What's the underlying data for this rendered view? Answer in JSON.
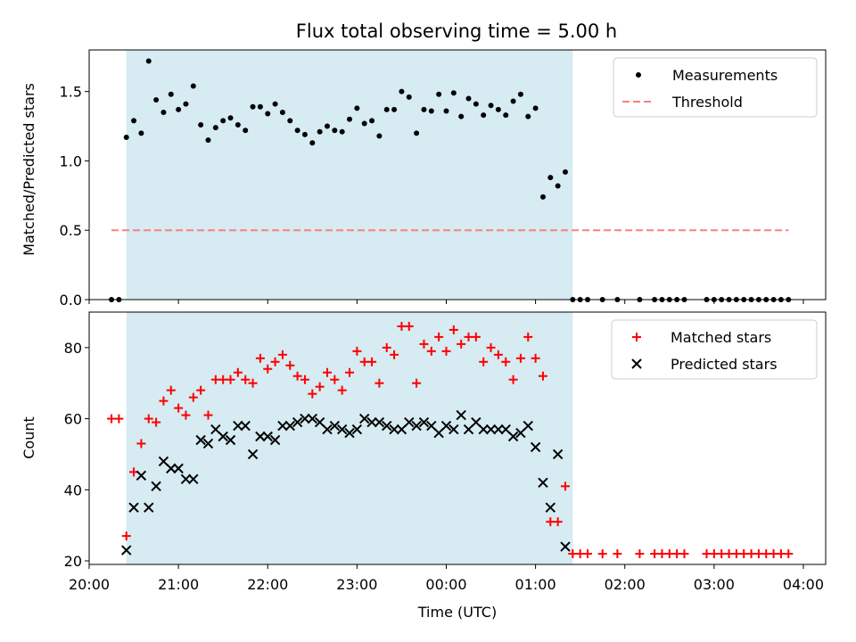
{
  "title": "Flux total observing time = 5.00 h",
  "colors": {
    "shade": "#add8e6",
    "measurements": "#000000",
    "threshold": "#ff7f7f",
    "matched": "#ff0000",
    "predicted": "#000000"
  },
  "chart_data": [
    {
      "type": "scatter",
      "ylabel": "Matched/Predicted stars",
      "xlabel": "",
      "xlim": [
        "20:00",
        "04:15"
      ],
      "ylim": [
        0,
        1.8
      ],
      "yticks": [
        "0.0",
        "0.5",
        "1.0",
        "1.5"
      ],
      "yticks_values": [
        0,
        0.5,
        1.0,
        1.5
      ],
      "xticks_values": [
        "20:00",
        "21:00",
        "22:00",
        "23:00",
        "00:00",
        "01:00",
        "02:00",
        "03:00",
        "04:00"
      ],
      "shaded_span": [
        "20:25",
        "01:25"
      ],
      "legend_placement": "upper right",
      "series": [
        {
          "name": "Measurements",
          "marker": "dot",
          "points": [
            [
              "20:15",
              0.0
            ],
            [
              "20:20",
              0.0
            ],
            [
              "20:25",
              1.17
            ],
            [
              "20:30",
              1.29
            ],
            [
              "20:35",
              1.2
            ],
            [
              "20:40",
              1.72
            ],
            [
              "20:45",
              1.44
            ],
            [
              "20:50",
              1.35
            ],
            [
              "20:55",
              1.48
            ],
            [
              "21:00",
              1.37
            ],
            [
              "21:05",
              1.41
            ],
            [
              "21:10",
              1.54
            ],
            [
              "21:15",
              1.26
            ],
            [
              "21:20",
              1.15
            ],
            [
              "21:25",
              1.24
            ],
            [
              "21:30",
              1.29
            ],
            [
              "21:35",
              1.31
            ],
            [
              "21:40",
              1.26
            ],
            [
              "21:45",
              1.22
            ],
            [
              "21:50",
              1.39
            ],
            [
              "21:55",
              1.39
            ],
            [
              "22:00",
              1.34
            ],
            [
              "22:05",
              1.41
            ],
            [
              "22:10",
              1.35
            ],
            [
              "22:15",
              1.29
            ],
            [
              "22:20",
              1.22
            ],
            [
              "22:25",
              1.19
            ],
            [
              "22:30",
              1.13
            ],
            [
              "22:35",
              1.21
            ],
            [
              "22:40",
              1.25
            ],
            [
              "22:45",
              1.22
            ],
            [
              "22:50",
              1.21
            ],
            [
              "22:55",
              1.3
            ],
            [
              "23:00",
              1.38
            ],
            [
              "23:05",
              1.27
            ],
            [
              "23:10",
              1.29
            ],
            [
              "23:15",
              1.18
            ],
            [
              "23:20",
              1.37
            ],
            [
              "23:25",
              1.37
            ],
            [
              "23:30",
              1.5
            ],
            [
              "23:35",
              1.46
            ],
            [
              "23:40",
              1.2
            ],
            [
              "23:45",
              1.37
            ],
            [
              "23:50",
              1.36
            ],
            [
              "23:55",
              1.48
            ],
            [
              "00:00",
              1.36
            ],
            [
              "00:05",
              1.49
            ],
            [
              "00:10",
              1.32
            ],
            [
              "00:15",
              1.45
            ],
            [
              "00:20",
              1.41
            ],
            [
              "00:25",
              1.33
            ],
            [
              "00:30",
              1.4
            ],
            [
              "00:35",
              1.37
            ],
            [
              "00:40",
              1.33
            ],
            [
              "00:45",
              1.43
            ],
            [
              "00:50",
              1.48
            ],
            [
              "00:55",
              1.32
            ],
            [
              "01:00",
              1.38
            ],
            [
              "01:05",
              0.74
            ],
            [
              "01:10",
              0.88
            ],
            [
              "01:15",
              0.82
            ],
            [
              "01:20",
              0.92
            ],
            [
              "01:25",
              0.0
            ],
            [
              "01:30",
              0.0
            ],
            [
              "01:35",
              0.0
            ],
            [
              "01:45",
              0.0
            ],
            [
              "01:55",
              0.0
            ],
            [
              "02:10",
              0.0
            ],
            [
              "02:20",
              0.0
            ],
            [
              "02:25",
              0.0
            ],
            [
              "02:30",
              0.0
            ],
            [
              "02:35",
              0.0
            ],
            [
              "02:40",
              0.0
            ],
            [
              "02:55",
              0.0
            ],
            [
              "03:00",
              0.0
            ],
            [
              "03:05",
              0.0
            ],
            [
              "03:10",
              0.0
            ],
            [
              "03:15",
              0.0
            ],
            [
              "03:20",
              0.0
            ],
            [
              "03:25",
              0.0
            ],
            [
              "03:30",
              0.0
            ],
            [
              "03:35",
              0.0
            ],
            [
              "03:40",
              0.0
            ],
            [
              "03:45",
              0.0
            ],
            [
              "03:50",
              0.0
            ]
          ]
        },
        {
          "name": "Threshold",
          "style": "dashed-line",
          "points": [
            [
              "20:15",
              0.5
            ],
            [
              "03:50",
              0.5
            ]
          ]
        }
      ]
    },
    {
      "type": "scatter",
      "ylabel": "Count",
      "xlabel": "Time (UTC)",
      "xlim": [
        "20:00",
        "04:15"
      ],
      "ylim": [
        19,
        90
      ],
      "yticks": [
        "20",
        "40",
        "60",
        "80"
      ],
      "yticks_values": [
        20,
        40,
        60,
        80
      ],
      "xticks": [
        "20:00",
        "21:00",
        "22:00",
        "23:00",
        "00:00",
        "01:00",
        "02:00",
        "03:00",
        "04:00"
      ],
      "shaded_span": [
        "20:25",
        "01:25"
      ],
      "legend_placement": "upper right",
      "series": [
        {
          "name": "Matched stars",
          "marker": "plus",
          "points": [
            [
              "20:15",
              60
            ],
            [
              "20:20",
              60
            ],
            [
              "20:25",
              27
            ],
            [
              "20:30",
              45
            ],
            [
              "20:35",
              53
            ],
            [
              "20:40",
              60
            ],
            [
              "20:45",
              59
            ],
            [
              "20:50",
              65
            ],
            [
              "20:55",
              68
            ],
            [
              "21:00",
              63
            ],
            [
              "21:05",
              61
            ],
            [
              "21:10",
              66
            ],
            [
              "21:15",
              68
            ],
            [
              "21:20",
              61
            ],
            [
              "21:25",
              71
            ],
            [
              "21:30",
              71
            ],
            [
              "21:35",
              71
            ],
            [
              "21:40",
              73
            ],
            [
              "21:45",
              71
            ],
            [
              "21:50",
              70
            ],
            [
              "21:55",
              77
            ],
            [
              "22:00",
              74
            ],
            [
              "22:05",
              76
            ],
            [
              "22:10",
              78
            ],
            [
              "22:15",
              75
            ],
            [
              "22:20",
              72
            ],
            [
              "22:25",
              71
            ],
            [
              "22:30",
              67
            ],
            [
              "22:35",
              69
            ],
            [
              "22:40",
              73
            ],
            [
              "22:45",
              71
            ],
            [
              "22:50",
              68
            ],
            [
              "22:55",
              73
            ],
            [
              "23:00",
              79
            ],
            [
              "23:05",
              76
            ],
            [
              "23:10",
              76
            ],
            [
              "23:15",
              70
            ],
            [
              "23:20",
              80
            ],
            [
              "23:25",
              78
            ],
            [
              "23:30",
              86
            ],
            [
              "23:35",
              86
            ],
            [
              "23:40",
              70
            ],
            [
              "23:45",
              81
            ],
            [
              "23:50",
              79
            ],
            [
              "23:55",
              83
            ],
            [
              "00:00",
              79
            ],
            [
              "00:05",
              85
            ],
            [
              "00:10",
              81
            ],
            [
              "00:15",
              83
            ],
            [
              "00:20",
              83
            ],
            [
              "00:25",
              76
            ],
            [
              "00:30",
              80
            ],
            [
              "00:35",
              78
            ],
            [
              "00:40",
              76
            ],
            [
              "00:45",
              71
            ],
            [
              "00:50",
              77
            ],
            [
              "00:55",
              83
            ],
            [
              "01:00",
              77
            ],
            [
              "01:05",
              72
            ],
            [
              "01:10",
              31
            ],
            [
              "01:15",
              31
            ],
            [
              "01:20",
              41
            ],
            [
              "01:25",
              22
            ],
            [
              "01:30",
              22
            ],
            [
              "01:35",
              22
            ],
            [
              "01:45",
              22
            ],
            [
              "01:55",
              22
            ],
            [
              "02:10",
              22
            ],
            [
              "02:20",
              22
            ],
            [
              "02:25",
              22
            ],
            [
              "02:30",
              22
            ],
            [
              "02:35",
              22
            ],
            [
              "02:40",
              22
            ],
            [
              "02:55",
              22
            ],
            [
              "03:00",
              22
            ],
            [
              "03:05",
              22
            ],
            [
              "03:10",
              22
            ],
            [
              "03:15",
              22
            ],
            [
              "03:20",
              22
            ],
            [
              "03:25",
              22
            ],
            [
              "03:30",
              22
            ],
            [
              "03:35",
              22
            ],
            [
              "03:40",
              22
            ],
            [
              "03:45",
              22
            ],
            [
              "03:50",
              22
            ]
          ]
        },
        {
          "name": "Predicted stars",
          "marker": "x",
          "points": [
            [
              "20:25",
              23
            ],
            [
              "20:30",
              35
            ],
            [
              "20:35",
              44
            ],
            [
              "20:40",
              35
            ],
            [
              "20:45",
              41
            ],
            [
              "20:50",
              48
            ],
            [
              "20:55",
              46
            ],
            [
              "21:00",
              46
            ],
            [
              "21:05",
              43
            ],
            [
              "21:10",
              43
            ],
            [
              "21:15",
              54
            ],
            [
              "21:20",
              53
            ],
            [
              "21:25",
              57
            ],
            [
              "21:30",
              55
            ],
            [
              "21:35",
              54
            ],
            [
              "21:40",
              58
            ],
            [
              "21:45",
              58
            ],
            [
              "21:50",
              50
            ],
            [
              "21:55",
              55
            ],
            [
              "22:00",
              55
            ],
            [
              "22:05",
              54
            ],
            [
              "22:10",
              58
            ],
            [
              "22:15",
              58
            ],
            [
              "22:20",
              59
            ],
            [
              "22:25",
              60
            ],
            [
              "22:30",
              60
            ],
            [
              "22:35",
              59
            ],
            [
              "22:40",
              57
            ],
            [
              "22:45",
              58
            ],
            [
              "22:50",
              57
            ],
            [
              "22:55",
              56
            ],
            [
              "23:00",
              57
            ],
            [
              "23:05",
              60
            ],
            [
              "23:10",
              59
            ],
            [
              "23:15",
              59
            ],
            [
              "23:20",
              58
            ],
            [
              "23:25",
              57
            ],
            [
              "23:30",
              57
            ],
            [
              "23:35",
              59
            ],
            [
              "23:40",
              58
            ],
            [
              "23:45",
              59
            ],
            [
              "23:50",
              58
            ],
            [
              "23:55",
              56
            ],
            [
              "00:00",
              58
            ],
            [
              "00:05",
              57
            ],
            [
              "00:10",
              61
            ],
            [
              "00:15",
              57
            ],
            [
              "00:20",
              59
            ],
            [
              "00:25",
              57
            ],
            [
              "00:30",
              57
            ],
            [
              "00:35",
              57
            ],
            [
              "00:40",
              57
            ],
            [
              "00:45",
              55
            ],
            [
              "00:50",
              56
            ],
            [
              "00:55",
              58
            ],
            [
              "01:00",
              52
            ],
            [
              "01:05",
              42
            ],
            [
              "01:10",
              35
            ],
            [
              "01:15",
              50
            ],
            [
              "01:20",
              24
            ]
          ]
        }
      ]
    }
  ]
}
